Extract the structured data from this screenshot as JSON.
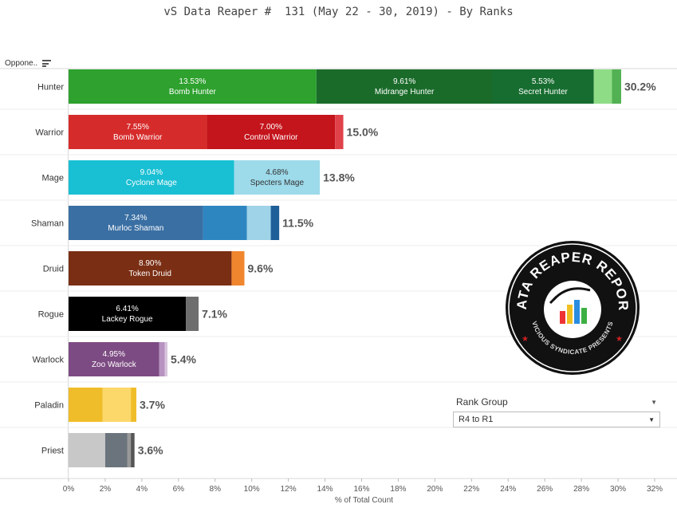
{
  "title": "vS Data Reaper #  131 (May 22 - 30, 2019) - By Ranks",
  "row_header": "Oppone..",
  "rank_filter": {
    "label": "Rank Group",
    "selected": "R4 to R1"
  },
  "logo": {
    "text_top": "DATA REAPER REPORT",
    "text_bottom": "VICIOUS SYNDICATE PRESENTS"
  },
  "chart_data": {
    "type": "bar",
    "orientation": "horizontal",
    "stacked": true,
    "xlabel": "% of Total Count",
    "xlim": [
      0,
      32
    ],
    "xticks": [
      "0%",
      "2%",
      "4%",
      "6%",
      "8%",
      "10%",
      "12%",
      "14%",
      "16%",
      "18%",
      "20%",
      "22%",
      "24%",
      "26%",
      "28%",
      "30%",
      "32%"
    ],
    "grid": false,
    "rows": [
      {
        "class": "Hunter",
        "total_label": "30.2%",
        "segments": [
          {
            "value": 13.53,
            "label": "13.53%",
            "name": "Bomb Hunter",
            "color": "#2ea12e"
          },
          {
            "value": 9.61,
            "label": "9.61%",
            "name": "Midrange Hunter",
            "color": "#1a6b2a"
          },
          {
            "value": 5.53,
            "label": "5.53%",
            "name": "Secret Hunter",
            "color": "#176d30"
          },
          {
            "value": 1.0,
            "color": "#8fdc87"
          },
          {
            "value": 0.5,
            "color": "#52b152"
          }
        ]
      },
      {
        "class": "Warrior",
        "total_label": "15.0%",
        "segments": [
          {
            "value": 7.55,
            "label": "7.55%",
            "name": "Bomb Warrior",
            "color": "#d62b2b"
          },
          {
            "value": 7.0,
            "label": "7.00%",
            "name": "Control Warrior",
            "color": "#c4141c"
          },
          {
            "value": 0.45,
            "color": "#e0424a"
          }
        ]
      },
      {
        "class": "Mage",
        "total_label": "13.8%",
        "segments": [
          {
            "value": 9.04,
            "label": "9.04%",
            "name": "Cyclone Mage",
            "color": "#19bfd3"
          },
          {
            "value": 4.68,
            "label": "4.68%",
            "name": "Specters Mage",
            "color": "#9ddaea"
          }
        ]
      },
      {
        "class": "Shaman",
        "total_label": "11.5%",
        "segments": [
          {
            "value": 7.34,
            "label": "7.34%",
            "name": "Murloc Shaman",
            "color": "#3a6fa3"
          },
          {
            "value": 2.4,
            "color": "#2e86c1"
          },
          {
            "value": 1.3,
            "color": "#9fd3e8"
          },
          {
            "value": 0.46,
            "color": "#1e5f99"
          }
        ]
      },
      {
        "class": "Druid",
        "total_label": "9.6%",
        "segments": [
          {
            "value": 8.9,
            "label": "8.90%",
            "name": "Token Druid",
            "color": "#7a2e14"
          },
          {
            "value": 0.7,
            "color": "#f0862e"
          }
        ]
      },
      {
        "class": "Rogue",
        "total_label": "7.1%",
        "segments": [
          {
            "value": 6.41,
            "label": "6.41%",
            "name": "Lackey Rogue",
            "color": "#000000"
          },
          {
            "value": 0.69,
            "color": "#6e6e6e"
          }
        ]
      },
      {
        "class": "Warlock",
        "total_label": "5.4%",
        "segments": [
          {
            "value": 4.95,
            "label": "4.95%",
            "name": "Zoo Warlock",
            "color": "#7d4b83"
          },
          {
            "value": 0.3,
            "color": "#b793c0"
          },
          {
            "value": 0.15,
            "color": "#d8c4de"
          }
        ]
      },
      {
        "class": "Paladin",
        "total_label": "3.7%",
        "segments": [
          {
            "value": 1.85,
            "color": "#f0bd2a"
          },
          {
            "value": 1.55,
            "color": "#fcd86a"
          },
          {
            "value": 0.3,
            "color": "#f0bd2a"
          }
        ]
      },
      {
        "class": "Priest",
        "total_label": "3.6%",
        "segments": [
          {
            "value": 2.0,
            "color": "#c8c8c8"
          },
          {
            "value": 1.2,
            "color": "#6b747c"
          },
          {
            "value": 0.2,
            "color": "#999999"
          },
          {
            "value": 0.2,
            "color": "#555555"
          }
        ]
      }
    ]
  }
}
